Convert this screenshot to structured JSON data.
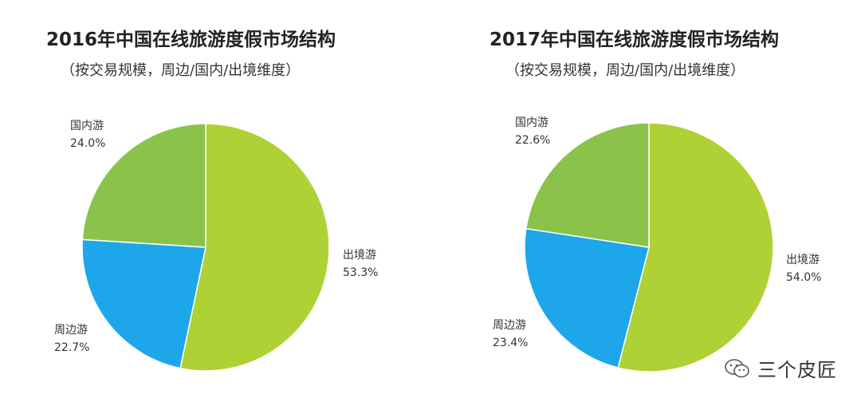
{
  "colors": {
    "outbound": "#aed136",
    "domestic": "#8bc34a",
    "surrounding": "#1ea6ea"
  },
  "watermark": {
    "text": "三个皮匠",
    "icon": "wechat-logo-icon"
  },
  "chart_data": [
    {
      "type": "pie",
      "title": "2016年中国在线旅游度假市场结构",
      "subtitle": "（按交易规模，周边/国内/出境维度）",
      "slices": [
        {
          "name": "出境游",
          "value": 53.3,
          "value_label": "53.3%",
          "color": "#aed136"
        },
        {
          "name": "周边游",
          "value": 22.7,
          "value_label": "22.7%",
          "color": "#1ea6ea"
        },
        {
          "name": "国内游",
          "value": 24.0,
          "value_label": "24.0%",
          "color": "#8bc34a"
        }
      ],
      "start_angle": "12 o'clock",
      "direction": "clockwise"
    },
    {
      "type": "pie",
      "title": "2017年中国在线旅游度假市场结构",
      "subtitle": "（按交易规模，周边/国内/出境维度）",
      "slices": [
        {
          "name": "出境游",
          "value": 54.0,
          "value_label": "54.0%",
          "color": "#aed136"
        },
        {
          "name": "周边游",
          "value": 23.4,
          "value_label": "23.4%",
          "color": "#1ea6ea"
        },
        {
          "name": "国内游",
          "value": 22.6,
          "value_label": "22.6%",
          "color": "#8bc34a"
        }
      ],
      "start_angle": "12 o'clock",
      "direction": "clockwise"
    }
  ]
}
